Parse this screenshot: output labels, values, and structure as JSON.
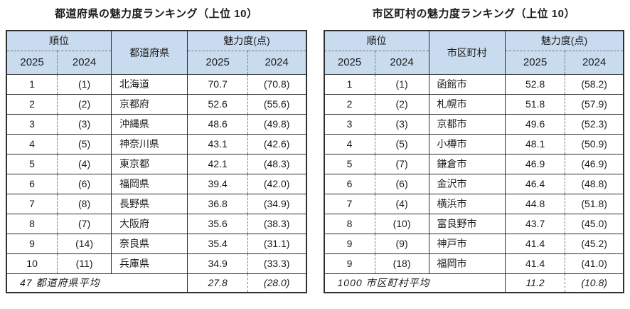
{
  "colors": {
    "header_bg": "#c9dbee",
    "border_dark": "#2f2f2f",
    "border_dotted": "#777777",
    "text": "#1b1b1b",
    "page_bg": "#ffffff"
  },
  "tables": [
    {
      "title": "都道府県の魅力度ランキング（上位 10）",
      "header": {
        "rank_group": "順位",
        "entity": "都道府県",
        "score_group": "魅力度(点)",
        "year_current": "2025",
        "year_previous": "2024"
      },
      "rows": [
        [
          "1",
          "(1)",
          "北海道",
          "70.7",
          "(70.8)"
        ],
        [
          "2",
          "(2)",
          "京都府",
          "52.6",
          "(55.6)"
        ],
        [
          "3",
          "(3)",
          "沖縄県",
          "48.6",
          "(49.8)"
        ],
        [
          "4",
          "(5)",
          "神奈川県",
          "43.1",
          "(42.6)"
        ],
        [
          "5",
          "(4)",
          "東京都",
          "42.1",
          "(48.3)"
        ],
        [
          "6",
          "(6)",
          "福岡県",
          "39.4",
          "(42.0)"
        ],
        [
          "7",
          "(8)",
          "長野県",
          "36.8",
          "(34.9)"
        ],
        [
          "8",
          "(7)",
          "大阪府",
          "35.6",
          "(38.3)"
        ],
        [
          "9",
          "(14)",
          "奈良県",
          "35.4",
          "(31.1)"
        ],
        [
          "10",
          "(11)",
          "兵庫県",
          "34.9",
          "(33.3)"
        ]
      ],
      "footer": {
        "label": "47 都道府県平均",
        "score_current": "27.8",
        "score_previous": "(28.0)"
      }
    },
    {
      "title": "市区町村の魅力度ランキング（上位 10）",
      "header": {
        "rank_group": "順位",
        "entity": "市区町村",
        "score_group": "魅力度(点)",
        "year_current": "2025",
        "year_previous": "2024"
      },
      "rows": [
        [
          "1",
          "(1)",
          "函館市",
          "52.8",
          "(58.2)"
        ],
        [
          "2",
          "(2)",
          "札幌市",
          "51.8",
          "(57.9)"
        ],
        [
          "3",
          "(3)",
          "京都市",
          "49.6",
          "(52.3)"
        ],
        [
          "4",
          "(5)",
          "小樽市",
          "48.1",
          "(50.9)"
        ],
        [
          "5",
          "(7)",
          "鎌倉市",
          "46.9",
          "(46.9)"
        ],
        [
          "6",
          "(6)",
          "金沢市",
          "46.4",
          "(48.8)"
        ],
        [
          "7",
          "(4)",
          "横浜市",
          "44.8",
          "(51.8)"
        ],
        [
          "8",
          "(10)",
          "富良野市",
          "43.7",
          "(45.0)"
        ],
        [
          "9",
          "(9)",
          "神戸市",
          "41.4",
          "(45.2)"
        ],
        [
          "9",
          "(18)",
          "福岡市",
          "41.4",
          "(41.0)"
        ]
      ],
      "footer": {
        "label": "1000 市区町村平均",
        "score_current": "11.2",
        "score_previous": "(10.8)"
      }
    }
  ],
  "chart_data": [
    {
      "type": "table",
      "title": "都道府県の魅力度ランキング（上位 10）",
      "columns": [
        "順位 2025",
        "順位 2024",
        "都道府県",
        "魅力度(点) 2025",
        "魅力度(点) 2024"
      ],
      "rows": [
        [
          1,
          1,
          "北海道",
          70.7,
          70.8
        ],
        [
          2,
          2,
          "京都府",
          52.6,
          55.6
        ],
        [
          3,
          3,
          "沖縄県",
          48.6,
          49.8
        ],
        [
          4,
          5,
          "神奈川県",
          43.1,
          42.6
        ],
        [
          5,
          4,
          "東京都",
          42.1,
          48.3
        ],
        [
          6,
          6,
          "福岡県",
          39.4,
          42.0
        ],
        [
          7,
          8,
          "長野県",
          36.8,
          34.9
        ],
        [
          8,
          7,
          "大阪府",
          35.6,
          38.3
        ],
        [
          9,
          14,
          "奈良県",
          35.4,
          31.1
        ],
        [
          10,
          11,
          "兵庫県",
          34.9,
          33.3
        ]
      ],
      "footer_row": [
        "47 都道府県平均",
        27.8,
        28.0
      ]
    },
    {
      "type": "table",
      "title": "市区町村の魅力度ランキング（上位 10）",
      "columns": [
        "順位 2025",
        "順位 2024",
        "市区町村",
        "魅力度(点) 2025",
        "魅力度(点) 2024"
      ],
      "rows": [
        [
          1,
          1,
          "函館市",
          52.8,
          58.2
        ],
        [
          2,
          2,
          "札幌市",
          51.8,
          57.9
        ],
        [
          3,
          3,
          "京都市",
          49.6,
          52.3
        ],
        [
          4,
          5,
          "小樽市",
          48.1,
          50.9
        ],
        [
          5,
          7,
          "鎌倉市",
          46.9,
          46.9
        ],
        [
          6,
          6,
          "金沢市",
          46.4,
          48.8
        ],
        [
          7,
          4,
          "横浜市",
          44.8,
          51.8
        ],
        [
          8,
          10,
          "富良野市",
          43.7,
          45.0
        ],
        [
          9,
          9,
          "神戸市",
          41.4,
          45.2
        ],
        [
          9,
          18,
          "福岡市",
          41.4,
          41.0
        ]
      ],
      "footer_row": [
        "1000 市区町村平均",
        11.2,
        10.8
      ]
    }
  ]
}
